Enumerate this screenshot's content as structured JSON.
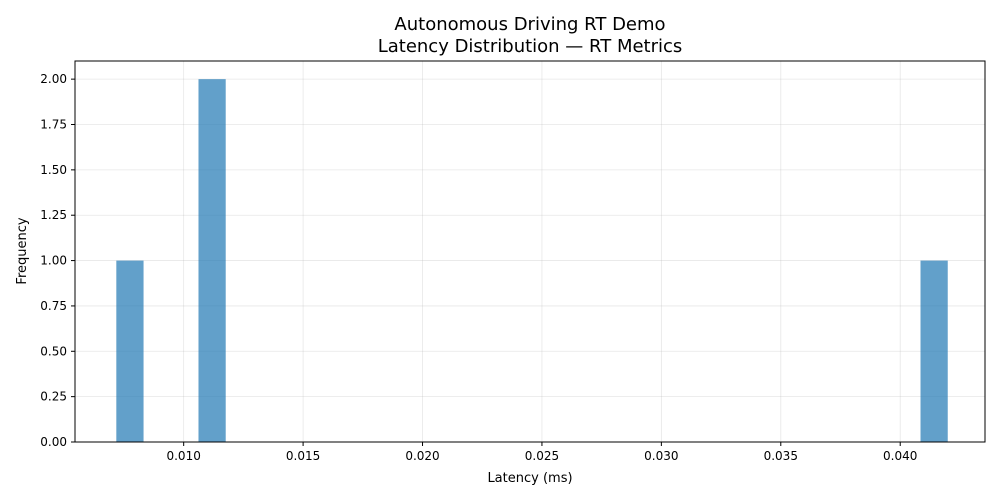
{
  "chart_data": {
    "type": "bar",
    "title_line1": "Autonomous Driving RT Demo",
    "title_line2": "Latency Distribution — RT Metrics",
    "xlabel": "Latency (ms)",
    "ylabel": "Frequency",
    "xlim": [
      0.00545,
      0.04355
    ],
    "ylim": [
      0,
      2.1
    ],
    "x_ticks": [
      0.01,
      0.015,
      0.02,
      0.025,
      0.03,
      0.035,
      0.04
    ],
    "x_tick_labels": [
      "0.010",
      "0.015",
      "0.020",
      "0.025",
      "0.030",
      "0.035",
      "0.040"
    ],
    "y_ticks": [
      0,
      0.25,
      0.5,
      0.75,
      1.0,
      1.25,
      1.5,
      1.75,
      2.0
    ],
    "y_tick_labels": [
      "0.00",
      "0.25",
      "0.50",
      "0.75",
      "1.00",
      "1.25",
      "1.50",
      "1.75",
      "2.00"
    ],
    "grid": true,
    "color": "#1f77b4",
    "bars": [
      {
        "x_start": 0.00718,
        "x_end": 0.00832,
        "value": 1
      },
      {
        "x_start": 0.01062,
        "x_end": 0.01176,
        "value": 2
      },
      {
        "x_start": 0.04085,
        "x_end": 0.04199,
        "value": 1
      }
    ]
  }
}
